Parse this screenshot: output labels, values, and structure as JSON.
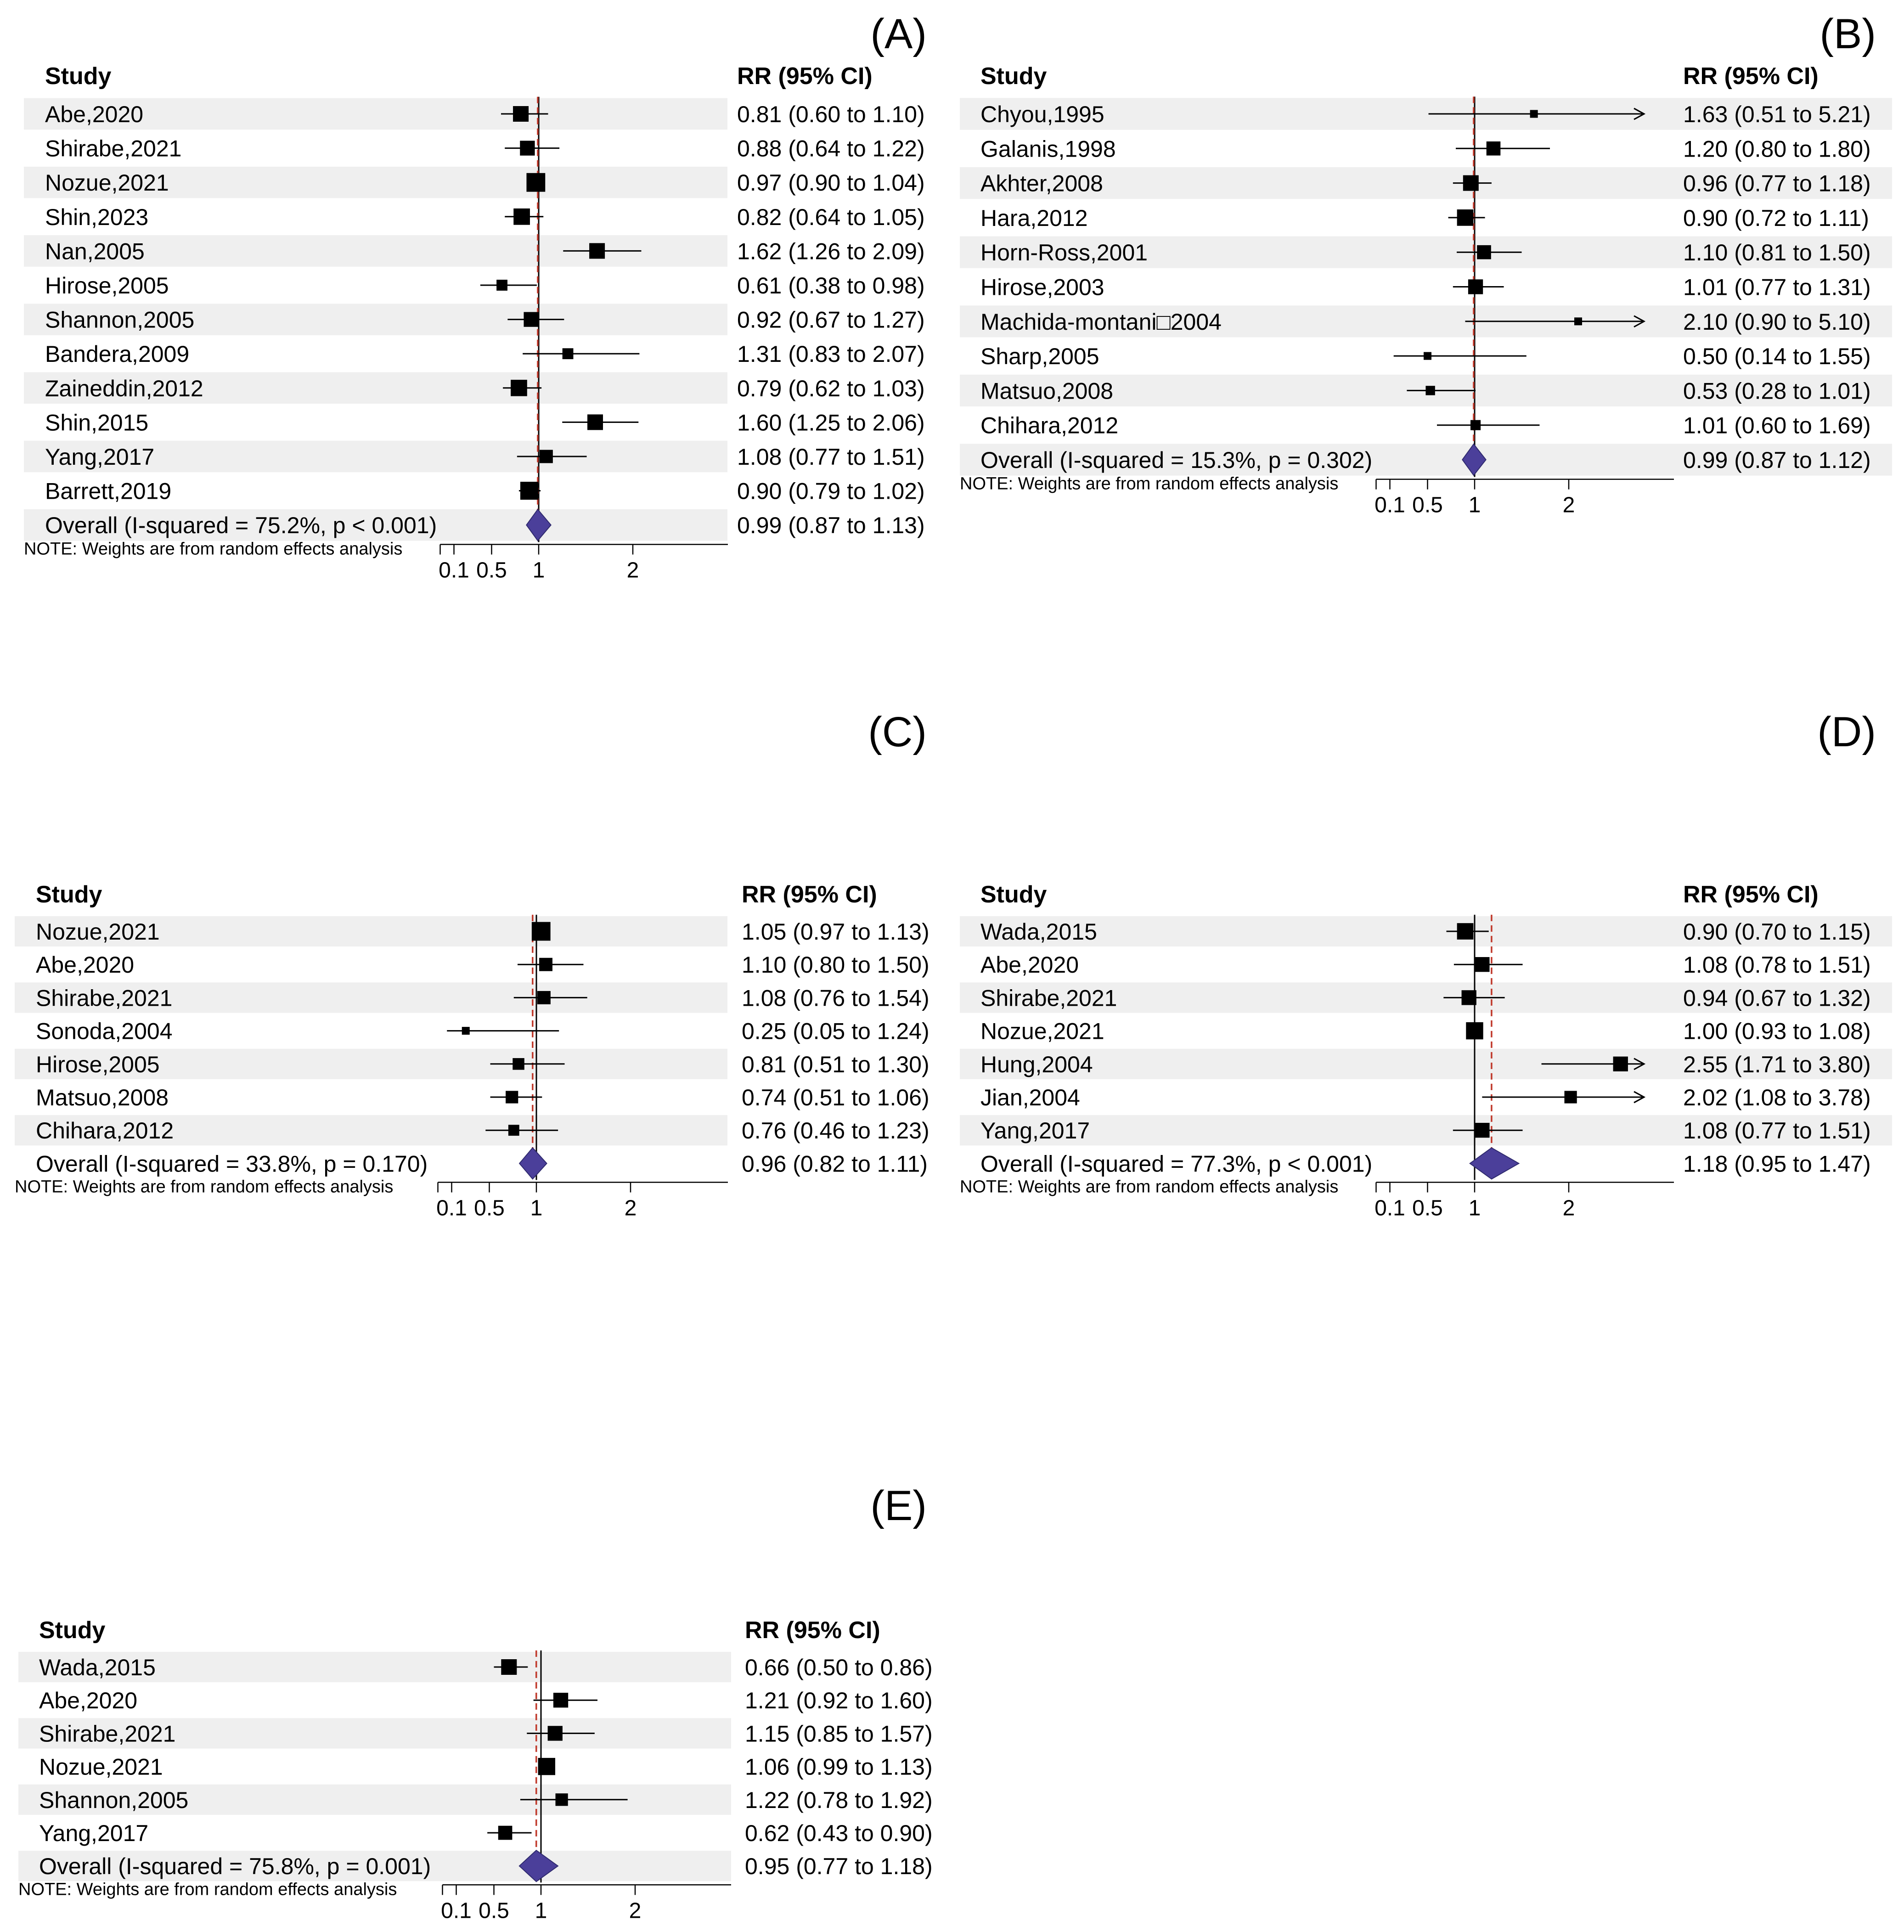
{
  "colors": {
    "row_shade": "#efefef",
    "marker": "#000000",
    "null_line": "#000000",
    "overall_line": "#c0392b",
    "diamond_fill": "#4b3f9a",
    "diamond_stroke": "#2f2a6e"
  },
  "chart_data": [
    {
      "type": "forest",
      "panel": "(A)",
      "study_header": "Study",
      "effect_header": "RR (95% CI)",
      "note": "NOTE: Weights are from random effects analysis",
      "x_ticks": [
        "0.1",
        "0.5",
        "1",
        "2"
      ],
      "x_tick_values": [
        0.1,
        0.5,
        1,
        2
      ],
      "xlim": [
        0.1,
        2.8
      ],
      "null_value": 1,
      "studies": [
        {
          "name": "Abe,2020",
          "rr": 0.81,
          "lo": 0.6,
          "hi": 1.1,
          "label": "0.81 (0.60 to 1.10)",
          "weight": 1.0
        },
        {
          "name": "Shirabe,2021",
          "rr": 0.88,
          "lo": 0.64,
          "hi": 1.22,
          "label": "0.88 (0.64 to 1.22)",
          "weight": 0.95
        },
        {
          "name": "Nozue,2021",
          "rr": 0.97,
          "lo": 0.9,
          "hi": 1.04,
          "label": "0.97 (0.90 to 1.04)",
          "weight": 1.2
        },
        {
          "name": "Shin,2023",
          "rr": 0.82,
          "lo": 0.64,
          "hi": 1.05,
          "label": "0.82 (0.64 to 1.05)",
          "weight": 1.05
        },
        {
          "name": "Nan,2005",
          "rr": 1.62,
          "lo": 1.26,
          "hi": 2.09,
          "label": "1.62 (1.26 to 2.09)",
          "weight": 1.0
        },
        {
          "name": "Hirose,2005",
          "rr": 0.61,
          "lo": 0.38,
          "hi": 0.98,
          "label": "0.61 (0.38 to 0.98)",
          "weight": 0.7
        },
        {
          "name": "Shannon,2005",
          "rr": 0.92,
          "lo": 0.67,
          "hi": 1.27,
          "label": "0.92 (0.67 to 1.27)",
          "weight": 0.95
        },
        {
          "name": "Bandera,2009",
          "rr": 1.31,
          "lo": 0.83,
          "hi": 2.07,
          "label": "1.31 (0.83 to 2.07)",
          "weight": 0.7
        },
        {
          "name": "Zaineddin,2012",
          "rr": 0.79,
          "lo": 0.62,
          "hi": 1.03,
          "label": "0.79 (0.62 to 1.03)",
          "weight": 1.05
        },
        {
          "name": "Shin,2015",
          "rr": 1.6,
          "lo": 1.25,
          "hi": 2.06,
          "label": "1.60 (1.25 to 2.06)",
          "weight": 1.0
        },
        {
          "name": "Yang,2017",
          "rr": 1.08,
          "lo": 0.77,
          "hi": 1.51,
          "label": "1.08 (0.77 to 1.51)",
          "weight": 0.85
        },
        {
          "name": "Barrett,2019",
          "rr": 0.9,
          "lo": 0.79,
          "hi": 1.02,
          "label": "0.90 (0.79 to 1.02)",
          "weight": 1.15
        }
      ],
      "overall": {
        "name": "Overall (I-squared = 75.2%, p < 0.001)",
        "rr": 0.99,
        "lo": 0.87,
        "hi": 1.13,
        "label": "0.99 (0.87 to 1.13)"
      }
    },
    {
      "type": "forest",
      "panel": "(B)",
      "study_header": "Study",
      "effect_header": "RR (95% CI)",
      "note": "NOTE: Weights are from random effects analysis",
      "x_ticks": [
        "0.1",
        "0.5",
        "1",
        "2"
      ],
      "x_tick_values": [
        0.1,
        0.5,
        1,
        2
      ],
      "xlim": [
        0.1,
        2.8
      ],
      "null_value": 1,
      "studies": [
        {
          "name": "Chyou,1995",
          "rr": 1.63,
          "lo": 0.51,
          "hi": 5.21,
          "label": "1.63 (0.51 to 5.21)",
          "weight": 0.5
        },
        {
          "name": "Galanis,1998",
          "rr": 1.2,
          "lo": 0.8,
          "hi": 1.8,
          "label": "1.20 (0.80 to 1.80)",
          "weight": 0.9
        },
        {
          "name": "Akhter,2008",
          "rr": 0.96,
          "lo": 0.77,
          "hi": 1.18,
          "label": "0.96 (0.77 to 1.18)",
          "weight": 1.0
        },
        {
          "name": "Hara,2012",
          "rr": 0.9,
          "lo": 0.72,
          "hi": 1.11,
          "label": "0.90 (0.72 to 1.11)",
          "weight": 1.05
        },
        {
          "name": "Horn-Ross,2001",
          "rr": 1.1,
          "lo": 0.81,
          "hi": 1.5,
          "label": "1.10 (0.81 to 1.50)",
          "weight": 0.9
        },
        {
          "name": "Hirose,2003",
          "rr": 1.01,
          "lo": 0.77,
          "hi": 1.31,
          "label": "1.01 (0.77 to 1.31)",
          "weight": 0.95
        },
        {
          "name": "Machida-montani□2004",
          "rr": 2.1,
          "lo": 0.9,
          "hi": 5.1,
          "label": "2.10 (0.90 to 5.10)",
          "weight": 0.5
        },
        {
          "name": "Sharp,2005",
          "rr": 0.5,
          "lo": 0.14,
          "hi": 1.55,
          "label": "0.50 (0.14 to 1.55)",
          "weight": 0.5
        },
        {
          "name": "Matsuo,2008",
          "rr": 0.53,
          "lo": 0.28,
          "hi": 1.01,
          "label": "0.53 (0.28 to 1.01)",
          "weight": 0.6
        },
        {
          "name": "Chihara,2012",
          "rr": 1.01,
          "lo": 0.6,
          "hi": 1.69,
          "label": "1.01 (0.60 to 1.69)",
          "weight": 0.65
        }
      ],
      "overall": {
        "name": "Overall (I-squared = 15.3%, p = 0.302)",
        "rr": 0.99,
        "lo": 0.87,
        "hi": 1.12,
        "label": "0.99 (0.87 to 1.12)"
      }
    },
    {
      "type": "forest",
      "panel": "(C)",
      "study_header": "Study",
      "effect_header": "RR (95% CI)",
      "note": "NOTE: Weights are from random effects analysis",
      "x_ticks": [
        "0.1",
        "0.5",
        "1",
        "2"
      ],
      "x_tick_values": [
        0.1,
        0.5,
        1,
        2
      ],
      "xlim": [
        0.1,
        2.8
      ],
      "null_value": 1,
      "studies": [
        {
          "name": "Nozue,2021",
          "rr": 1.05,
          "lo": 0.97,
          "hi": 1.13,
          "label": "1.05 (0.97 to 1.13)",
          "weight": 1.2
        },
        {
          "name": "Abe,2020",
          "rr": 1.1,
          "lo": 0.8,
          "hi": 1.5,
          "label": "1.10 (0.80 to 1.50)",
          "weight": 0.85
        },
        {
          "name": "Shirabe,2021",
          "rr": 1.08,
          "lo": 0.76,
          "hi": 1.54,
          "label": "1.08 (0.76 to 1.54)",
          "weight": 0.85
        },
        {
          "name": "Sonoda,2004",
          "rr": 0.25,
          "lo": 0.05,
          "hi": 1.24,
          "label": "0.25 (0.05 to 1.24)",
          "weight": 0.5
        },
        {
          "name": "Hirose,2005",
          "rr": 0.81,
          "lo": 0.51,
          "hi": 1.3,
          "label": "0.81 (0.51 to 1.30)",
          "weight": 0.75
        },
        {
          "name": "Matsuo,2008",
          "rr": 0.74,
          "lo": 0.51,
          "hi": 1.06,
          "label": "0.74 (0.51 to 1.06)",
          "weight": 0.8
        },
        {
          "name": "Chihara,2012",
          "rr": 0.76,
          "lo": 0.46,
          "hi": 1.23,
          "label": "0.76 (0.46 to 1.23)",
          "weight": 0.7
        }
      ],
      "overall": {
        "name": "Overall (I-squared = 33.8%, p = 0.170)",
        "rr": 0.96,
        "lo": 0.82,
        "hi": 1.11,
        "label": "0.96 (0.82 to 1.11)"
      }
    },
    {
      "type": "forest",
      "panel": "(D)",
      "study_header": "Study",
      "effect_header": "RR (95% CI)",
      "note": "NOTE: Weights are from random effects analysis",
      "x_ticks": [
        "0.1",
        "0.5",
        "1",
        "2"
      ],
      "x_tick_values": [
        0.1,
        0.5,
        1,
        2
      ],
      "xlim": [
        0.1,
        2.8
      ],
      "null_value": 1,
      "studies": [
        {
          "name": "Wada,2015",
          "rr": 0.9,
          "lo": 0.7,
          "hi": 1.15,
          "label": "0.90 (0.70 to 1.15)",
          "weight": 1.05
        },
        {
          "name": "Abe,2020",
          "rr": 1.08,
          "lo": 0.78,
          "hi": 1.51,
          "label": "1.08 (0.78 to 1.51)",
          "weight": 0.95
        },
        {
          "name": "Shirabe,2021",
          "rr": 0.94,
          "lo": 0.67,
          "hi": 1.32,
          "label": "0.94 (0.67 to 1.32)",
          "weight": 0.95
        },
        {
          "name": "Nozue,2021",
          "rr": 1.0,
          "lo": 0.93,
          "hi": 1.08,
          "label": "1.00 (0.93 to 1.08)",
          "weight": 1.1
        },
        {
          "name": "Hung,2004",
          "rr": 2.55,
          "lo": 1.71,
          "hi": 3.8,
          "label": "2.55 (1.71 to 3.80)",
          "weight": 0.95
        },
        {
          "name": "Jian,2004",
          "rr": 2.02,
          "lo": 1.08,
          "hi": 3.78,
          "label": "2.02 (1.08 to 3.78)",
          "weight": 0.8
        },
        {
          "name": "Yang,2017",
          "rr": 1.08,
          "lo": 0.77,
          "hi": 1.51,
          "label": "1.08 (0.77 to 1.51)",
          "weight": 0.95
        }
      ],
      "overall": {
        "name": "Overall (I-squared = 77.3%, p < 0.001)",
        "rr": 1.18,
        "lo": 0.95,
        "hi": 1.47,
        "label": "1.18 (0.95 to 1.47)"
      }
    },
    {
      "type": "forest",
      "panel": "(E)",
      "study_header": "Study",
      "effect_header": "RR (95% CI)",
      "note": "NOTE: Weights are from random effects analysis",
      "x_ticks": [
        "0.1",
        "0.5",
        "1",
        "2"
      ],
      "x_tick_values": [
        0.1,
        0.5,
        1,
        2
      ],
      "xlim": [
        0.1,
        2.8
      ],
      "null_value": 1,
      "studies": [
        {
          "name": "Wada,2015",
          "rr": 0.66,
          "lo": 0.5,
          "hi": 0.86,
          "label": "0.66 (0.50 to 0.86)",
          "weight": 1.0
        },
        {
          "name": "Abe,2020",
          "rr": 1.21,
          "lo": 0.92,
          "hi": 1.6,
          "label": "1.21 (0.92 to 1.60)",
          "weight": 0.95
        },
        {
          "name": "Shirabe,2021",
          "rr": 1.15,
          "lo": 0.85,
          "hi": 1.57,
          "label": "1.15 (0.85 to 1.57)",
          "weight": 0.95
        },
        {
          "name": "Nozue,2021",
          "rr": 1.06,
          "lo": 0.99,
          "hi": 1.13,
          "label": "1.06 (0.99 to 1.13)",
          "weight": 1.1
        },
        {
          "name": "Shannon,2005",
          "rr": 1.22,
          "lo": 0.78,
          "hi": 1.92,
          "label": "1.22 (0.78 to 1.92)",
          "weight": 0.8
        },
        {
          "name": "Yang,2017",
          "rr": 0.62,
          "lo": 0.43,
          "hi": 0.9,
          "label": "0.62 (0.43 to 0.90)",
          "weight": 0.9
        }
      ],
      "overall": {
        "name": "Overall (I-squared = 75.8%, p = 0.001)",
        "rr": 0.95,
        "lo": 0.77,
        "hi": 1.18,
        "label": "0.95 (0.77 to 1.18)"
      }
    }
  ]
}
